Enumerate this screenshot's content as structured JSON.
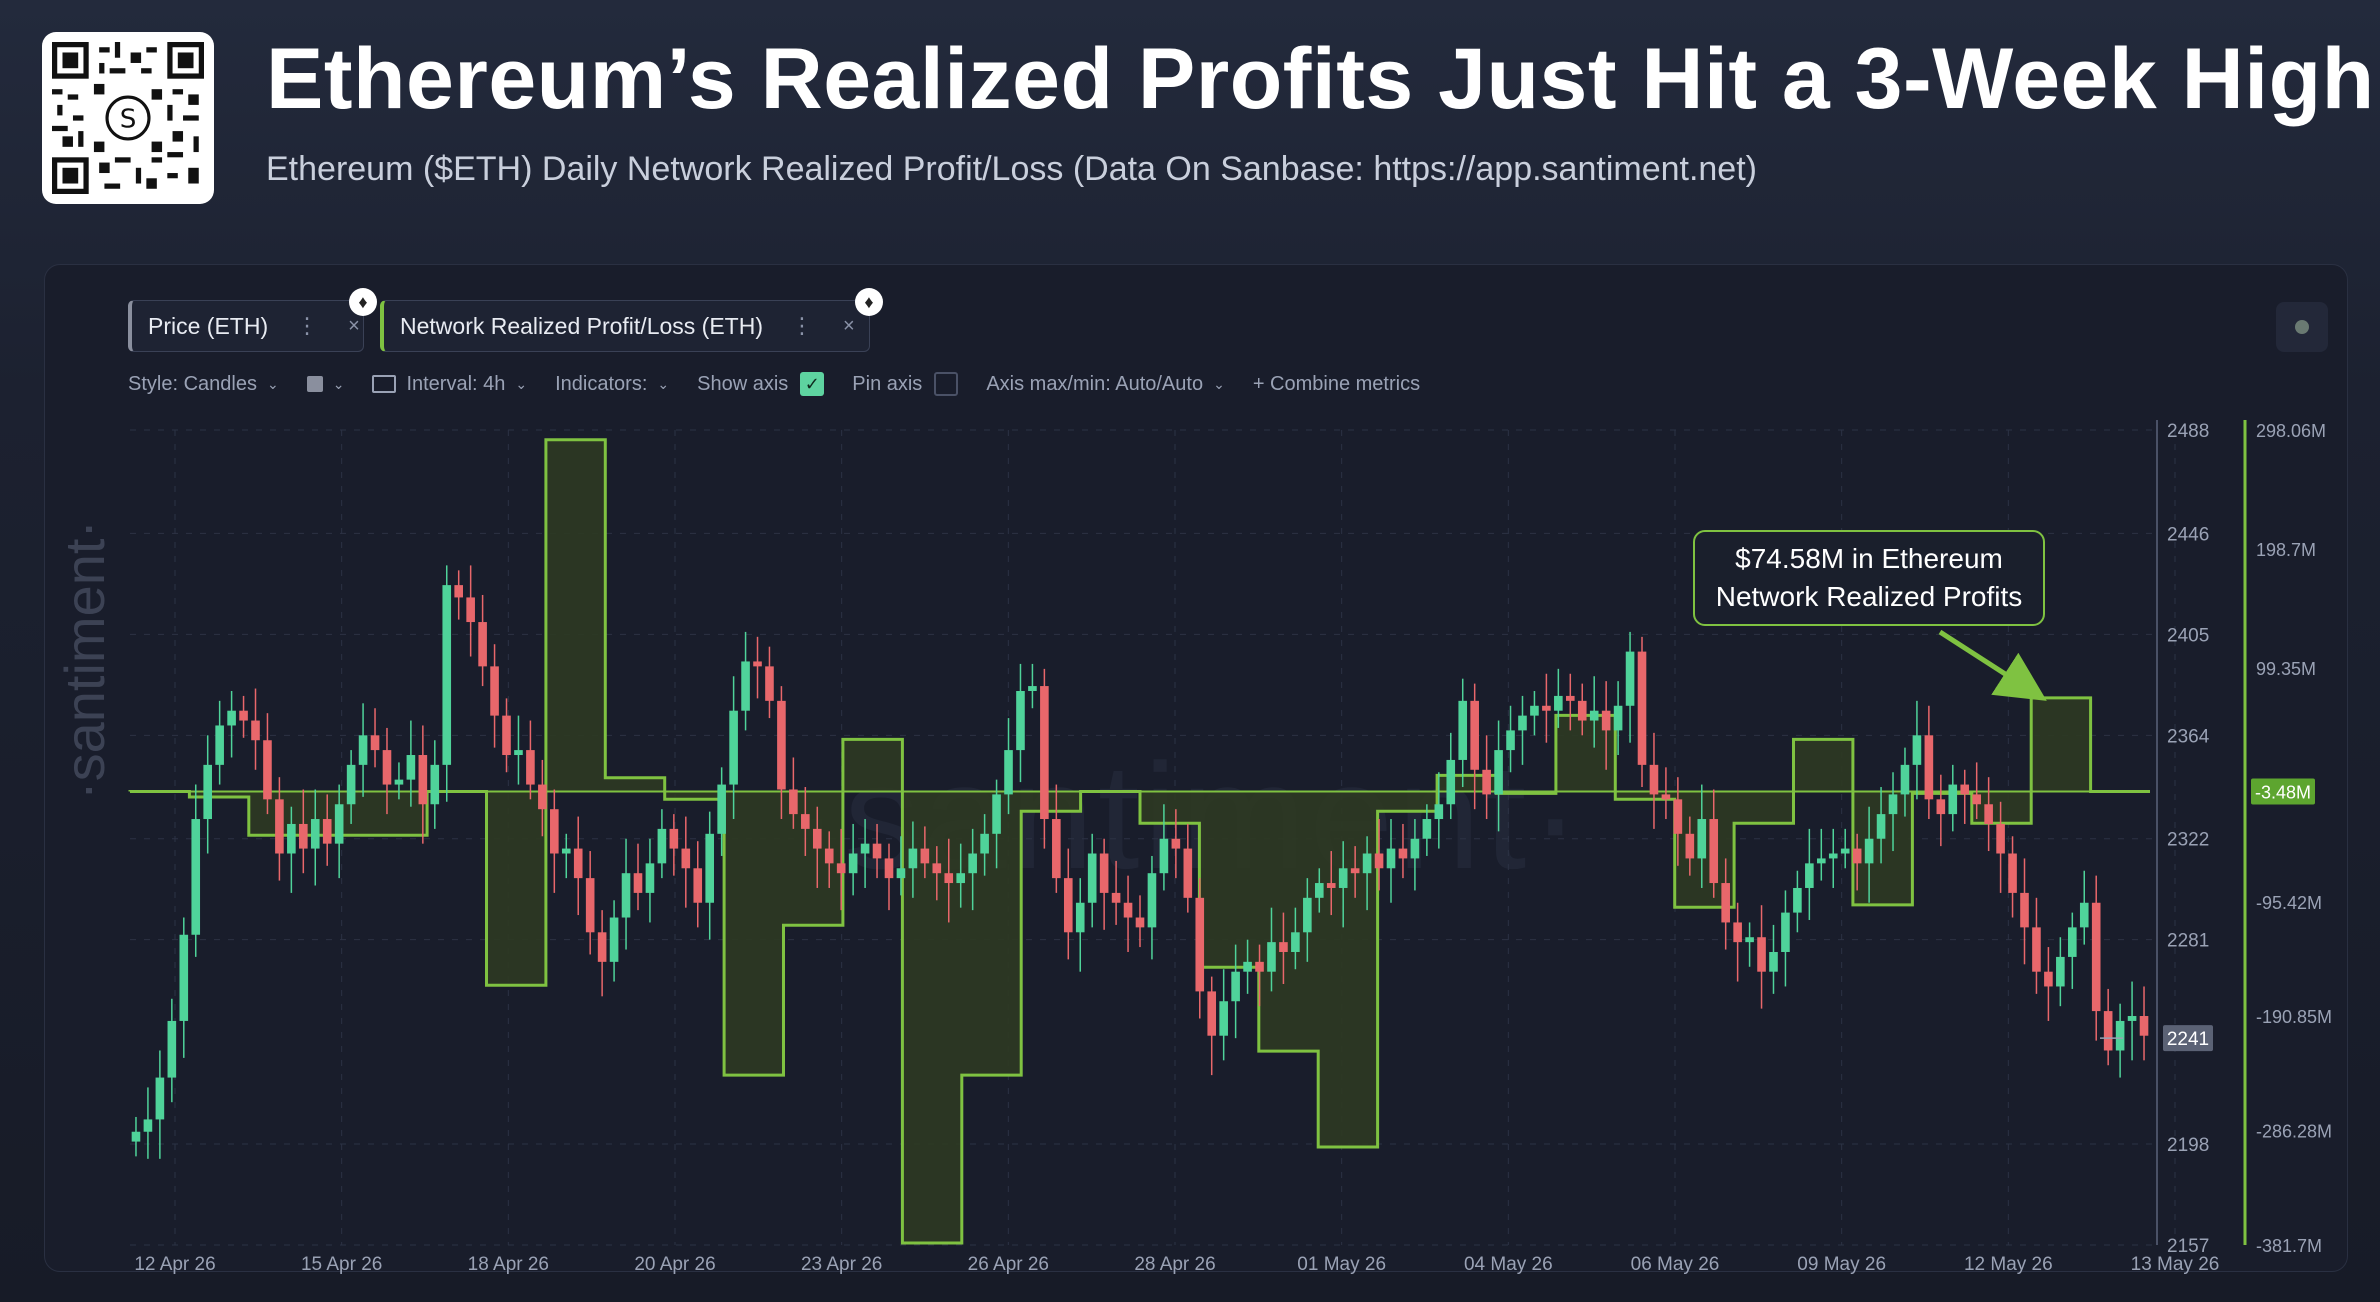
{
  "header": {
    "title": "Ethereum’s Realized Profits Just Hit a 3-Week High",
    "subtitle": "Ethereum ($ETH) Daily Network Realized Profit/Loss (Data On Sanbase: https://app.santiment.net)"
  },
  "metrics": {
    "price_chip": "Price (ETH)",
    "nrpl_chip": "Network Realized Profit/Loss (ETH)",
    "more_glyph": "⋮",
    "close_glyph": "×",
    "eth_glyph": "♦"
  },
  "toolbar": {
    "style": "Style: Candles",
    "interval": "Interval: 4h",
    "indicators": "Indicators:",
    "show_axis": "Show axis",
    "pin_axis": "Pin axis",
    "axis_maxmin": "Axis max/min: Auto/Auto",
    "combine": "+  Combine metrics"
  },
  "watermark": "·santiment·",
  "watermark_center": "·santiment·",
  "annotation": {
    "line1": "$74.58M in Ethereum",
    "line2": "Network Realized Profits"
  },
  "colors": {
    "up": "#4fd39a",
    "down": "#e8676b",
    "nrpl_line": "#7fc241",
    "nrpl_fill": "#2e3a22",
    "grid": "#2c3244"
  },
  "chart_data": {
    "type": "candlestick + step-area",
    "price_axis": {
      "ticks": [
        2488,
        2446,
        2405,
        2364,
        2322,
        2281,
        2198,
        2157
      ],
      "range": [
        2157,
        2488
      ],
      "current": 2241
    },
    "nrpl_axis": {
      "ticks": [
        "298.06M",
        "198.7M",
        "99.35M",
        "-95.42M",
        "-190.85M",
        "-286.28M",
        "-381.7M"
      ],
      "range": [
        -381.7,
        298.06
      ],
      "current_label": "-3.48M"
    },
    "x_labels": [
      "12 Apr 26",
      "15 Apr 26",
      "18 Apr 26",
      "20 Apr 26",
      "23 Apr 26",
      "26 Apr 26",
      "28 Apr 26",
      "01 May 26",
      "04 May 26",
      "06 May 26",
      "09 May 26",
      "12 May 26",
      "13 May 26"
    ],
    "price_close_4h": [
      2203,
      2208,
      2225,
      2248,
      2283,
      2330,
      2352,
      2368,
      2374,
      2370,
      2362,
      2338,
      2316,
      2328,
      2318,
      2330,
      2320,
      2336,
      2352,
      2364,
      2358,
      2344,
      2346,
      2356,
      2336,
      2352,
      2425,
      2420,
      2410,
      2392,
      2372,
      2356,
      2358,
      2344,
      2334,
      2316,
      2318,
      2306,
      2284,
      2272,
      2290,
      2308,
      2300,
      2312,
      2326,
      2318,
      2310,
      2296,
      2324,
      2344,
      2374,
      2394,
      2392,
      2378,
      2342,
      2332,
      2326,
      2318,
      2312,
      2308,
      2316,
      2320,
      2314,
      2306,
      2310,
      2318,
      2312,
      2308,
      2304,
      2308,
      2316,
      2324,
      2340,
      2358,
      2382,
      2384,
      2330,
      2306,
      2284,
      2296,
      2316,
      2300,
      2296,
      2290,
      2286,
      2308,
      2322,
      2318,
      2298,
      2260,
      2242,
      2256,
      2268,
      2272,
      2268,
      2280,
      2276,
      2284,
      2298,
      2304,
      2302,
      2310,
      2308,
      2316,
      2310,
      2318,
      2314,
      2322,
      2330,
      2336,
      2354,
      2378,
      2350,
      2340,
      2358,
      2366,
      2372,
      2376,
      2374,
      2380,
      2378,
      2370,
      2374,
      2366,
      2376,
      2398,
      2352,
      2340,
      2338,
      2324,
      2314,
      2330,
      2304,
      2288,
      2280,
      2282,
      2268,
      2276,
      2292,
      2302,
      2312,
      2314,
      2316,
      2318,
      2312,
      2322,
      2332,
      2340,
      2352,
      2364,
      2338,
      2332,
      2344,
      2340,
      2336,
      2328,
      2316,
      2300,
      2286,
      2268,
      2262,
      2274,
      2286,
      2296,
      2252,
      2236,
      2248,
      2250,
      2242
    ],
    "nrpl_daily_M": [
      [
        "12 Apr 26",
        -3.48
      ],
      [
        "13 Apr 26",
        -8.0
      ],
      [
        "14 Apr 26",
        -40.0
      ],
      [
        "15 Apr 26",
        -40.0
      ],
      [
        "16 Apr 26",
        -40.0
      ],
      [
        "17 Apr 26",
        -3.48
      ],
      [
        "18 Apr 26",
        -165.0
      ],
      [
        "19 Apr 26",
        290.0
      ],
      [
        "20 Apr 26",
        8.0
      ],
      [
        "21 Apr 26",
        -10.0
      ],
      [
        "22 Apr 26",
        -240.0
      ],
      [
        "23 Apr 26",
        -115.0
      ],
      [
        "24 Apr 26",
        40.0
      ],
      [
        "25 Apr 26",
        -380.0
      ],
      [
        "26 Apr 26",
        -240.0
      ],
      [
        "27 Apr 26",
        -20.0
      ],
      [
        "28 Apr 26",
        -3.48
      ],
      [
        "29 Apr 26",
        -30.0
      ],
      [
        "30 Apr 26",
        -150.0
      ],
      [
        "01 May 26",
        -220.0
      ],
      [
        "02 May 26",
        -300.0
      ],
      [
        "03 May 26",
        -20.0
      ],
      [
        "04 May 26",
        10.0
      ],
      [
        "05 May 26",
        -5.0
      ],
      [
        "06 May 26",
        60.0
      ],
      [
        "07 May 26",
        -10.0
      ],
      [
        "08 May 26",
        -100.0
      ],
      [
        "09 May 26",
        -30.0
      ],
      [
        "10 May 26",
        40.0
      ],
      [
        "11 May 26",
        -98.0
      ],
      [
        "12 May 26",
        -5.0
      ],
      [
        "12 May 26 b",
        -30.0
      ],
      [
        "13 May 26",
        74.58
      ],
      [
        "13 May 26 b",
        -3.48
      ]
    ]
  }
}
